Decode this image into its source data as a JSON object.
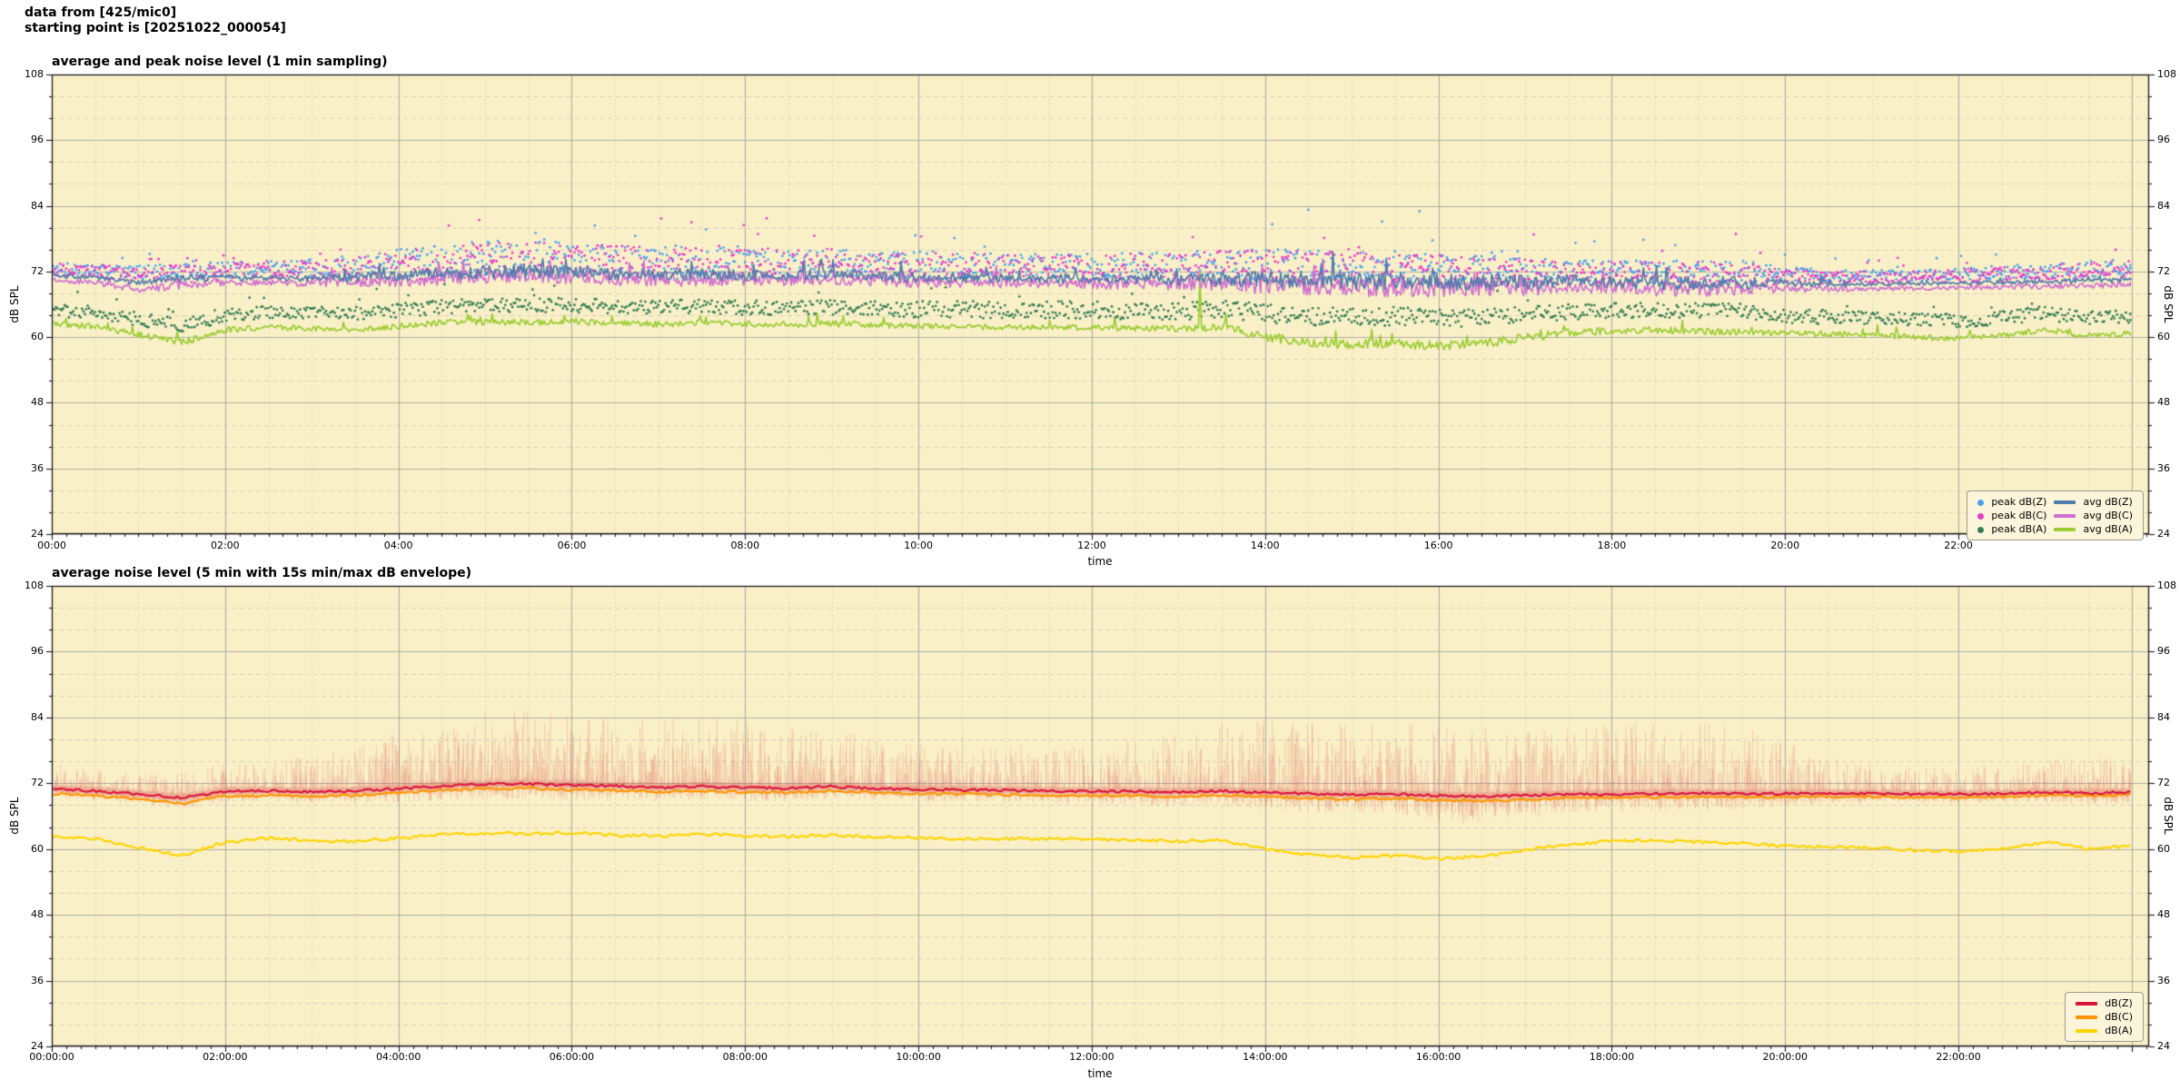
{
  "header": {
    "line1": "data from [425/mic0]",
    "line2": "starting point is [20251022_000054]"
  },
  "colors": {
    "figure_bg": "#ffffff",
    "axes_bg": "#faf0c8",
    "grid_major": "#9e9e9e",
    "grid_minor": "#b9b9ab",
    "spine": "#1a1a1a",
    "text": "#000000",
    "envelope": "rgba(219,80,74,0.24)"
  },
  "chart_data": [
    {
      "type": "scatter",
      "title": "average and peak noise level (1 min sampling)",
      "xlabel": "time",
      "ylabel_left": "dB SPL",
      "ylabel_right": "dB SPL",
      "ylim": [
        24,
        108
      ],
      "yticks": [
        24,
        36,
        48,
        60,
        72,
        84,
        96,
        108
      ],
      "xlim_hours": [
        0,
        24.2
      ],
      "xtick_hours": [
        0,
        2,
        4,
        6,
        8,
        10,
        12,
        14,
        16,
        18,
        20,
        22
      ],
      "xtick_labels": [
        "00:00",
        "02:00",
        "04:00",
        "06:00",
        "08:00",
        "10:00",
        "12:00",
        "14:00",
        "16:00",
        "18:00",
        "20:00",
        "22:00"
      ],
      "grid": true,
      "legend_position": "lower right",
      "sampling_minutes": 1,
      "keyframe_step_hours": 0.5,
      "series": [
        {
          "name": "peak dB(Z)",
          "kind": "scatter",
          "color": "#4ba2ec",
          "base": [
            72.5,
            72.3,
            71.9,
            71.8,
            72.3,
            72.5,
            72.6,
            72.8,
            73.4,
            73.8,
            74.2,
            74.3,
            74.0,
            73.8,
            73.6,
            73.8,
            73.6,
            73.5,
            73.6,
            73.2,
            73.2,
            73.1,
            73.0,
            72.9,
            72.8,
            72.9,
            72.9,
            73.2,
            73.2,
            73.0,
            72.8,
            72.9,
            72.7,
            72.5,
            72.2,
            72.1,
            72.0,
            71.9,
            71.8,
            71.9,
            71.4,
            71.2,
            71.2,
            71.3,
            71.5,
            71.8,
            72.0,
            72.3,
            72.5
          ],
          "spread": [
            1.2,
            1.1,
            1.2,
            1.6,
            1.5,
            1.4,
            1.7,
            2.2,
            2.8,
            3.2,
            3.4,
            3.4,
            3.2,
            3.1,
            3.0,
            3.2,
            3.0,
            2.8,
            2.8,
            2.4,
            2.6,
            2.6,
            2.4,
            2.3,
            2.4,
            2.6,
            2.6,
            2.9,
            3.0,
            2.9,
            2.8,
            2.9,
            2.7,
            2.5,
            2.2,
            2.0,
            2.0,
            2.1,
            2.2,
            2.1,
            1.4,
            1.1,
            1.0,
            1.0,
            1.1,
            1.3,
            1.4,
            1.6,
            1.7
          ]
        },
        {
          "name": "peak dB(C)",
          "kind": "scatter",
          "color": "#e93bcb",
          "base": [
            72.2,
            72.0,
            71.6,
            71.5,
            72.0,
            72.2,
            72.3,
            72.5,
            73.1,
            73.5,
            73.9,
            74.0,
            73.7,
            73.5,
            73.3,
            73.5,
            73.3,
            73.2,
            73.3,
            72.9,
            72.9,
            72.8,
            72.7,
            72.6,
            72.5,
            72.6,
            72.6,
            72.9,
            72.9,
            72.7,
            72.5,
            72.6,
            72.4,
            72.2,
            71.9,
            71.8,
            71.7,
            71.6,
            71.5,
            71.6,
            71.1,
            70.9,
            70.9,
            71.0,
            71.2,
            71.5,
            71.7,
            72.0,
            72.2
          ],
          "spread": [
            1.3,
            1.2,
            1.3,
            1.7,
            1.6,
            1.5,
            1.8,
            2.3,
            2.9,
            3.3,
            3.5,
            3.5,
            3.3,
            3.2,
            3.1,
            3.3,
            3.1,
            2.9,
            2.9,
            2.5,
            2.7,
            2.7,
            2.5,
            2.4,
            2.5,
            2.7,
            2.7,
            3.0,
            3.1,
            3.0,
            2.9,
            3.0,
            2.8,
            2.6,
            2.3,
            2.1,
            2.1,
            2.2,
            2.3,
            2.2,
            1.5,
            1.2,
            1.1,
            1.1,
            1.2,
            1.4,
            1.5,
            1.7,
            1.8
          ]
        },
        {
          "name": "peak dB(A)",
          "kind": "scatter",
          "color": "#337d54",
          "base": [
            64.8,
            64.6,
            63.3,
            62.0,
            64.0,
            64.6,
            64.4,
            64.3,
            64.9,
            65.5,
            65.8,
            65.7,
            65.8,
            65.5,
            65.4,
            65.6,
            65.4,
            65.3,
            65.5,
            65.2,
            65.1,
            65.0,
            64.9,
            65.0,
            64.9,
            64.8,
            64.8,
            65.0,
            64.4,
            63.8,
            63.6,
            63.8,
            63.4,
            63.6,
            64.2,
            64.6,
            64.8,
            64.9,
            64.8,
            64.7,
            63.8,
            63.7,
            63.5,
            63.2,
            63.0,
            63.4,
            64.4,
            63.4,
            63.8
          ],
          "spread": [
            1.2,
            1.2,
            1.3,
            1.4,
            1.2,
            1.2,
            1.2,
            1.2,
            1.3,
            1.3,
            1.3,
            1.3,
            1.3,
            1.3,
            1.3,
            1.3,
            1.3,
            1.3,
            1.4,
            1.4,
            1.6,
            1.6,
            1.6,
            1.6,
            1.6,
            1.6,
            1.6,
            1.7,
            1.7,
            1.7,
            1.7,
            1.7,
            1.6,
            1.6,
            1.5,
            1.4,
            1.4,
            1.4,
            1.4,
            1.4,
            1.3,
            1.3,
            1.2,
            1.2,
            1.2,
            1.3,
            1.3,
            1.3,
            1.3
          ]
        },
        {
          "name": "avg dB(Z)",
          "kind": "line",
          "color": "#507cab",
          "values": [
            71.2,
            70.9,
            69.9,
            70.9,
            70.8,
            70.8,
            70.7,
            70.9,
            71.2,
            71.6,
            71.9,
            72.0,
            71.8,
            71.7,
            71.3,
            71.5,
            71.4,
            71.3,
            71.5,
            71.2,
            71.0,
            70.9,
            70.8,
            70.7,
            70.6,
            70.6,
            70.5,
            70.6,
            70.5,
            70.4,
            70.2,
            70.3,
            70.1,
            70.0,
            70.0,
            70.2,
            70.1,
            69.9,
            69.8,
            69.9,
            69.8,
            69.7,
            69.7,
            69.8,
            69.9,
            70.0,
            70.2,
            70.3,
            70.5
          ],
          "jitter": [
            0.4,
            0.4,
            0.5,
            0.7,
            0.5,
            0.5,
            0.6,
            0.8,
            1.0,
            1.2,
            1.3,
            1.3,
            1.2,
            1.2,
            1.1,
            1.2,
            1.1,
            1.0,
            1.0,
            0.9,
            0.9,
            0.9,
            0.8,
            0.8,
            0.8,
            0.9,
            0.9,
            1.3,
            1.5,
            1.6,
            1.6,
            1.7,
            1.6,
            1.5,
            1.3,
            1.2,
            1.2,
            1.3,
            1.3,
            1.2,
            0.7,
            0.4,
            0.35,
            0.3,
            0.3,
            0.35,
            0.4,
            0.45,
            0.5
          ]
        },
        {
          "name": "avg dB(C)",
          "kind": "line",
          "color": "#d06fd0",
          "values": [
            70.4,
            70.0,
            68.6,
            69.6,
            69.9,
            70.0,
            69.9,
            70.1,
            70.3,
            70.7,
            71.0,
            71.1,
            70.9,
            70.8,
            70.5,
            70.6,
            70.5,
            70.4,
            70.6,
            70.3,
            70.1,
            70.0,
            69.9,
            69.8,
            69.7,
            69.7,
            69.6,
            69.6,
            69.5,
            69.3,
            69.1,
            69.2,
            69.0,
            68.9,
            69.0,
            69.2,
            69.1,
            68.9,
            68.8,
            68.9,
            68.9,
            68.8,
            68.8,
            68.9,
            69.0,
            69.1,
            69.3,
            69.4,
            69.6
          ],
          "jitter": [
            0.45,
            0.45,
            0.55,
            0.8,
            0.55,
            0.55,
            0.65,
            0.9,
            1.1,
            1.3,
            1.4,
            1.4,
            1.3,
            1.3,
            1.2,
            1.3,
            1.2,
            1.1,
            1.1,
            1.0,
            1.0,
            1.0,
            0.9,
            0.9,
            0.9,
            1.0,
            1.0,
            1.4,
            1.6,
            1.7,
            1.7,
            1.8,
            1.7,
            1.6,
            1.4,
            1.3,
            1.3,
            1.4,
            1.4,
            1.3,
            0.8,
            0.45,
            0.4,
            0.35,
            0.35,
            0.4,
            0.45,
            0.5,
            0.55
          ]
        },
        {
          "name": "avg dB(A)",
          "kind": "line",
          "color": "#9acd32",
          "values": [
            62.3,
            62.0,
            60.5,
            59.0,
            61.3,
            61.9,
            61.6,
            61.4,
            62.0,
            62.6,
            62.8,
            62.7,
            62.9,
            62.5,
            62.4,
            62.6,
            62.4,
            62.3,
            62.5,
            62.2,
            62.0,
            61.9,
            61.8,
            61.9,
            61.7,
            61.6,
            61.5,
            61.8,
            60.2,
            59.0,
            58.6,
            58.9,
            58.3,
            58.8,
            59.9,
            60.8,
            61.2,
            61.3,
            61.1,
            60.9,
            60.7,
            60.6,
            60.4,
            60.0,
            59.8,
            60.2,
            61.4,
            60.2,
            60.7
          ],
          "jitter": [
            0.5,
            0.5,
            0.6,
            0.7,
            0.5,
            0.5,
            0.5,
            0.5,
            0.55,
            0.6,
            0.6,
            0.6,
            0.6,
            0.55,
            0.55,
            0.6,
            0.55,
            0.55,
            0.6,
            0.55,
            0.5,
            0.5,
            0.5,
            0.5,
            0.5,
            0.55,
            0.6,
            0.8,
            0.9,
            0.9,
            0.9,
            0.9,
            0.9,
            0.85,
            0.8,
            0.7,
            0.6,
            0.6,
            0.6,
            0.6,
            0.55,
            0.5,
            0.5,
            0.5,
            0.5,
            0.5,
            0.5,
            0.6,
            0.5
          ],
          "outliers": [
            [
              13.25,
              71.8
            ]
          ]
        }
      ]
    },
    {
      "type": "line",
      "title": "average noise level (5 min with 15s min/max dB envelope)",
      "xlabel": "time",
      "ylabel_left": "dB SPL",
      "ylabel_right": "dB SPL",
      "ylim": [
        24,
        108
      ],
      "yticks": [
        24,
        36,
        48,
        60,
        72,
        84,
        96,
        108
      ],
      "xlim_hours": [
        0,
        24.2
      ],
      "xtick_hours": [
        0,
        2,
        4,
        6,
        8,
        10,
        12,
        14,
        16,
        18,
        20,
        22
      ],
      "xtick_labels": [
        "00:00:00",
        "02:00:00",
        "04:00:00",
        "06:00:00",
        "08:00:00",
        "10:00:00",
        "12:00:00",
        "14:00:00",
        "16:00:00",
        "18:00:00",
        "20:00:00",
        "22:00:00"
      ],
      "grid": true,
      "legend_position": "lower right",
      "sampling_minutes": 5,
      "keyframe_step_hours": 0.5,
      "series": [
        {
          "name": "dB(Z)",
          "kind": "line",
          "color": "#dc143c",
          "values": [
            70.9,
            70.6,
            70.0,
            69.3,
            70.5,
            70.6,
            70.4,
            70.6,
            71.0,
            71.5,
            71.8,
            71.9,
            71.6,
            71.5,
            71.2,
            71.4,
            71.2,
            71.1,
            71.4,
            71.0,
            70.9,
            70.8,
            70.7,
            70.6,
            70.5,
            70.5,
            70.4,
            70.6,
            70.3,
            70.1,
            69.9,
            70.0,
            69.7,
            69.6,
            69.8,
            70.0,
            70.0,
            70.1,
            70.2,
            70.1,
            70.1,
            70.2,
            70.1,
            70.0,
            70.0,
            70.1,
            70.3,
            70.2,
            70.4
          ],
          "envelope": {
            "drop": [
              1.5,
              1.5,
              1.5,
              1.8,
              1.8,
              1.6,
              1.8,
              2.0,
              2.2,
              2.4,
              2.5,
              2.5,
              2.4,
              2.3,
              2.2,
              2.3,
              2.2,
              2.1,
              2.1,
              2.0,
              2.0,
              2.0,
              1.9,
              1.9,
              2.0,
              2.2,
              2.4,
              2.8,
              3.0,
              3.0,
              3.0,
              3.2,
              4.5,
              5.0,
              4.0,
              3.2,
              3.0,
              3.0,
              2.8,
              2.6,
              2.0,
              1.6,
              1.4,
              1.4,
              1.4,
              1.5,
              1.6,
              1.8,
              1.8
            ],
            "spike": [
              4,
              3.5,
              3.5,
              4,
              5,
              5,
              6,
              8,
              10,
              12,
              13,
              13,
              12,
              12,
              12,
              12.5,
              12,
              11,
              11,
              9,
              8,
              9,
              8,
              7.5,
              8,
              9,
              10,
              12,
              13,
              13,
              12.5,
              13,
              13,
              12,
              11.5,
              12,
              12.5,
              13,
              12.5,
              12,
              9,
              6,
              5,
              4.5,
              4.5,
              5,
              5.5,
              6,
              6.5
            ]
          }
        },
        {
          "name": "dB(C)",
          "kind": "line",
          "color": "#ff9500",
          "values": [
            70.1,
            69.8,
            69.1,
            68.3,
            69.7,
            69.8,
            69.6,
            69.8,
            70.2,
            70.7,
            71.0,
            71.1,
            70.8,
            70.7,
            70.4,
            70.6,
            70.4,
            70.3,
            70.6,
            70.2,
            70.1,
            70.0,
            69.9,
            69.8,
            69.7,
            69.7,
            69.6,
            69.8,
            69.5,
            69.3,
            69.1,
            69.2,
            68.9,
            68.8,
            69.0,
            69.3,
            69.3,
            69.4,
            69.5,
            69.4,
            69.5,
            69.6,
            69.5,
            69.4,
            69.4,
            69.5,
            69.8,
            69.7,
            69.9
          ]
        },
        {
          "name": "dB(A)",
          "kind": "line",
          "color": "#ffd500",
          "values": [
            62.2,
            61.9,
            60.3,
            58.8,
            61.2,
            61.9,
            61.6,
            61.4,
            62.0,
            62.7,
            62.9,
            62.8,
            63.0,
            62.5,
            62.4,
            62.7,
            62.4,
            62.3,
            62.5,
            62.2,
            62.0,
            61.9,
            61.8,
            61.9,
            61.7,
            61.6,
            61.4,
            61.6,
            60.0,
            58.9,
            58.5,
            58.8,
            58.2,
            58.7,
            59.8,
            60.9,
            61.4,
            61.6,
            61.3,
            61.0,
            60.5,
            60.4,
            60.2,
            59.8,
            59.6,
            60.0,
            61.3,
            60.0,
            60.5
          ]
        }
      ]
    }
  ]
}
